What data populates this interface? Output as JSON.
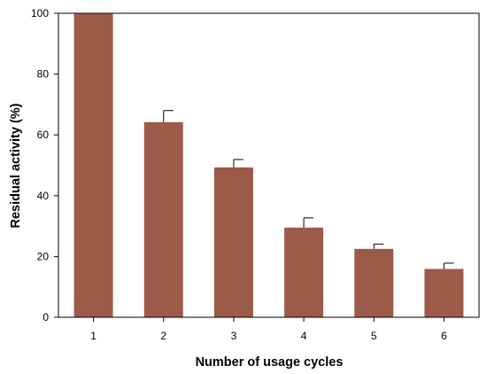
{
  "chart_data": {
    "type": "bar",
    "title": "",
    "xlabel": "Number of usage cycles",
    "ylabel": "Residual activity (%)",
    "categories": [
      "1",
      "2",
      "3",
      "4",
      "5",
      "6"
    ],
    "values": [
      100,
      64.2,
      49.3,
      29.5,
      22.5,
      15.9
    ],
    "errors": [
      0,
      3.8,
      2.6,
      3.2,
      1.6,
      1.9
    ],
    "ylim": [
      0,
      100
    ],
    "yticks": [
      0,
      20,
      40,
      60,
      80,
      100
    ],
    "grid": false,
    "bar_color": "#9c5a49"
  }
}
